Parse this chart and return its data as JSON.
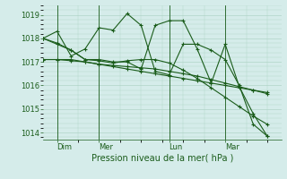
{
  "background_color": "#d5ecea",
  "grid_color": "#b0d4c8",
  "line_color": "#1a5c1a",
  "marker_color": "#1a5c1a",
  "title": "Pression niveau de la mer( hPa )",
  "xlabel_day_labels": [
    "Dim",
    "Mer",
    "Lun",
    "Mar"
  ],
  "xlabel_day_positions": [
    1,
    4,
    9,
    13
  ],
  "ylabel_ticks": [
    1014,
    1015,
    1016,
    1017,
    1018,
    1019
  ],
  "ylim": [
    1013.7,
    1019.4
  ],
  "xlim": [
    0,
    17
  ],
  "series": [
    [
      1018.0,
      1017.8,
      1017.5,
      1017.1,
      1017.1,
      1017.0,
      1017.0,
      1016.7,
      1018.55,
      1018.75,
      1018.75,
      1017.55,
      1016.1,
      1017.75,
      1015.95,
      1014.8,
      1013.85
    ],
    [
      1018.0,
      1018.3,
      1017.25,
      1017.55,
      1018.45,
      1018.35,
      1019.05,
      1018.55,
      1016.6,
      1016.45,
      1017.75,
      1017.75,
      1017.5,
      1017.1,
      1016.0,
      1014.35,
      1013.85
    ],
    [
      1018.0,
      1017.75,
      1017.5,
      1017.1,
      1017.05,
      1016.95,
      1017.05,
      1017.1,
      1017.1,
      1016.95,
      1016.65,
      1016.3,
      1015.9,
      1015.5,
      1015.1,
      1014.7,
      1014.35
    ],
    [
      1017.1,
      1017.1,
      1017.05,
      1017.0,
      1016.9,
      1016.85,
      1016.8,
      1016.75,
      1016.7,
      1016.6,
      1016.5,
      1016.4,
      1016.25,
      1016.1,
      1015.95,
      1015.8,
      1015.65
    ],
    [
      1017.1,
      1017.1,
      1017.1,
      1017.0,
      1016.9,
      1016.8,
      1016.7,
      1016.6,
      1016.5,
      1016.4,
      1016.3,
      1016.2,
      1016.1,
      1016.0,
      1015.9,
      1015.8,
      1015.7
    ]
  ],
  "vline_positions": [
    1,
    4,
    9,
    13
  ],
  "figsize": [
    3.2,
    2.0
  ],
  "dpi": 100,
  "title_fontsize": 7,
  "tick_fontsize": 6
}
